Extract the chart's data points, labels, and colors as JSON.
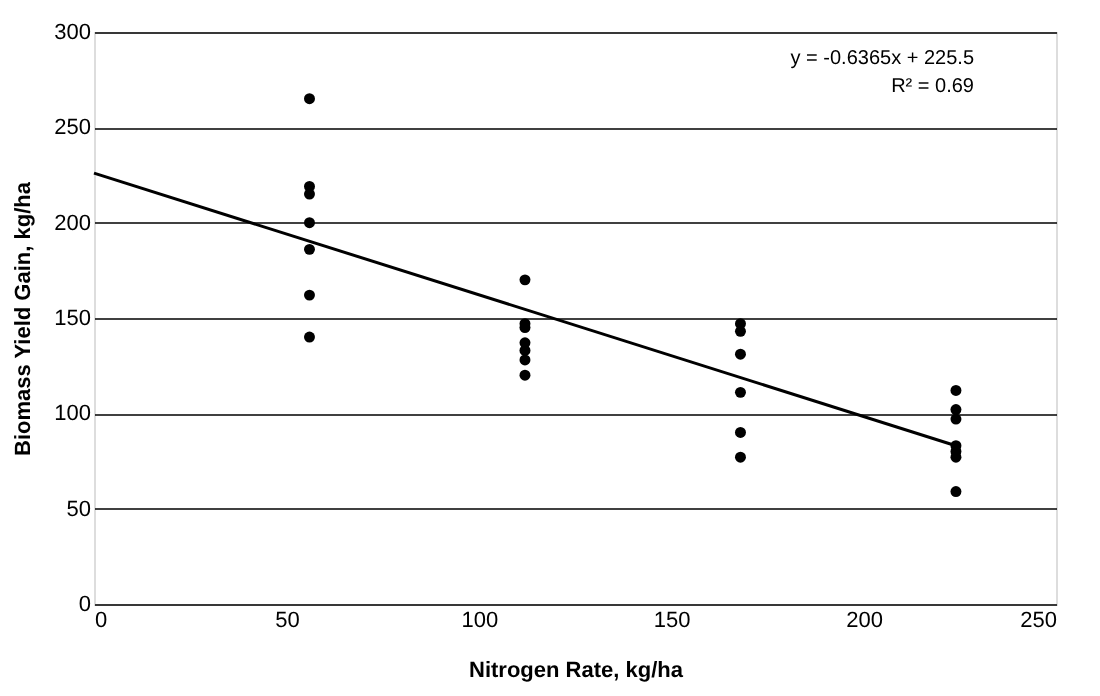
{
  "chart_data": {
    "type": "scatter",
    "xlabel": "Nitrogen Rate, kg/ha",
    "ylabel": "Biomass Yield Gain, kg/ha",
    "xlim": [
      0,
      250
    ],
    "xticks": [
      0,
      50,
      100,
      150,
      200,
      250
    ],
    "ylim": [
      0,
      300
    ],
    "yticks": [
      0,
      50,
      100,
      150,
      200,
      250,
      300
    ],
    "grid": "y",
    "series": [
      {
        "type": "scatter",
        "marker": "circle",
        "color": "#000000",
        "x": [
          56,
          56,
          56,
          56,
          56,
          56,
          56,
          112,
          112,
          112,
          112,
          112,
          112,
          112,
          168,
          168,
          168,
          168,
          168,
          168,
          224,
          224,
          224,
          224,
          224,
          224,
          224
        ],
        "values": [
          265,
          219,
          215,
          200,
          186,
          162,
          140,
          170,
          147,
          145,
          137,
          133,
          128,
          120,
          147,
          143,
          131,
          111,
          90,
          77,
          112,
          102,
          97,
          83,
          80,
          77,
          59
        ]
      },
      {
        "type": "line",
        "marker": "none",
        "color": "#000000",
        "x": [
          0,
          224
        ],
        "values": [
          226,
          83
        ]
      }
    ],
    "annotations": [
      "y = -0.6365x + 225.5",
      "R² = 0.69"
    ]
  }
}
